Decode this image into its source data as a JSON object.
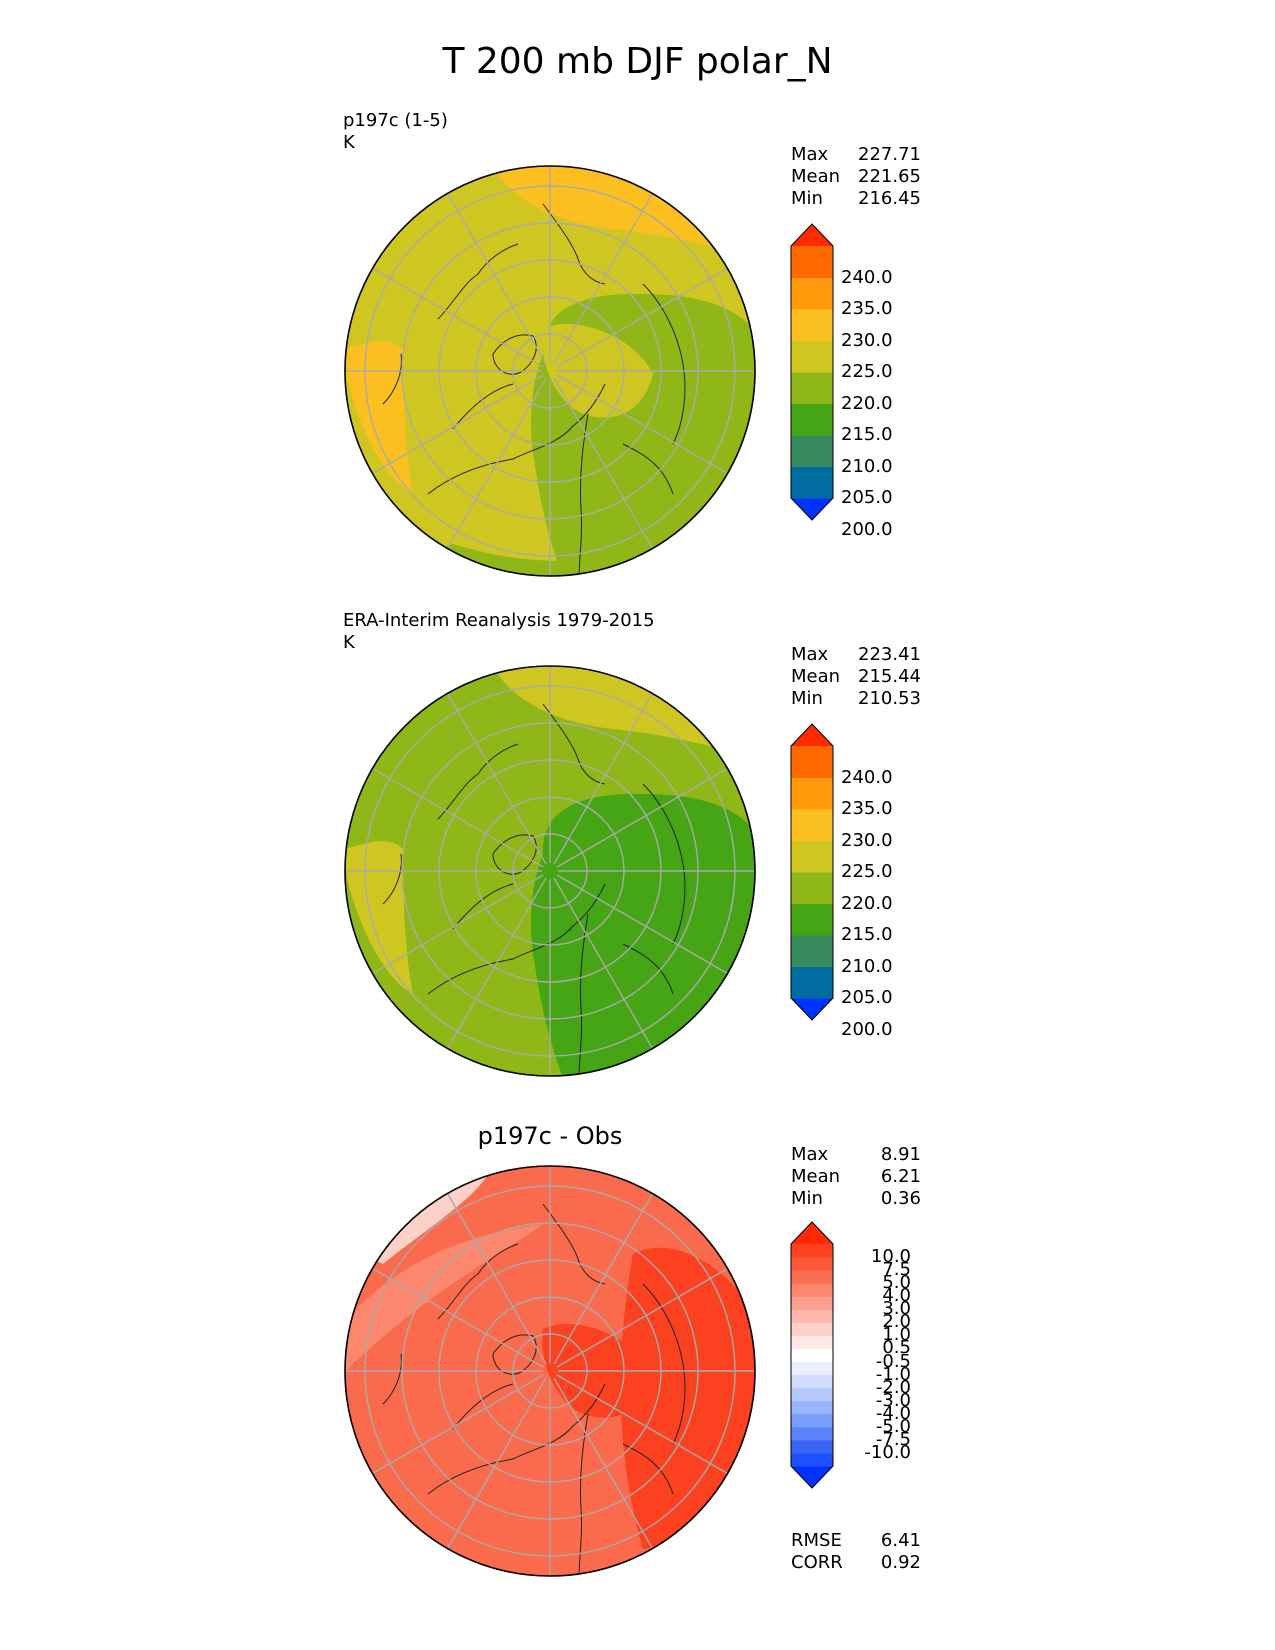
{
  "title": "T 200 mb DJF polar_N",
  "panels": [
    {
      "id": "test",
      "label": "p197c (1-5)",
      "units": "K",
      "stats": [
        {
          "label": "Max",
          "value": "227.71"
        },
        {
          "label": "Mean",
          "value": "221.65"
        },
        {
          "label": "Min",
          "value": "216.45"
        }
      ],
      "colorbar": {
        "colors": [
          "#0033ff",
          "#006ca0",
          "#368a5e",
          "#45a514",
          "#8fb718",
          "#d0c621",
          "#fbc01f",
          "#ff9a0d",
          "#ff6a00",
          "#ff2a00"
        ],
        "ticks": [
          "240.0",
          "235.0",
          "230.0",
          "225.0",
          "220.0",
          "215.0",
          "210.0",
          "205.0",
          "200.0"
        ]
      },
      "field": {
        "background": "#d0c621",
        "zones": [
          {
            "color": "#8fb718",
            "kind": "blob",
            "region": "central-asia-pole"
          },
          {
            "color": "#fbc01f",
            "kind": "blob",
            "region": "pacific-upper"
          },
          {
            "color": "#fbc01f",
            "kind": "blob",
            "region": "atlantic-left"
          },
          {
            "color": "#d0c621",
            "kind": "blob",
            "region": "south-asia"
          },
          {
            "color": "#8fb718",
            "kind": "blob",
            "region": "bottom-edge"
          }
        ]
      }
    },
    {
      "id": "reference",
      "label": "ERA-Interim Reanalysis 1979-2015",
      "units": "K",
      "stats": [
        {
          "label": "Max",
          "value": "223.41"
        },
        {
          "label": "Mean",
          "value": "215.44"
        },
        {
          "label": "Min",
          "value": "210.53"
        }
      ],
      "colorbar": {
        "colors": [
          "#0033ff",
          "#006ca0",
          "#368a5e",
          "#45a514",
          "#8fb718",
          "#d0c621",
          "#fbc01f",
          "#ff9a0d",
          "#ff6a00",
          "#ff2a00"
        ],
        "ticks": [
          "240.0",
          "235.0",
          "230.0",
          "225.0",
          "220.0",
          "215.0",
          "210.0",
          "205.0",
          "200.0"
        ]
      },
      "field": {
        "background": "#8fb718",
        "zones": [
          {
            "color": "#d0c621",
            "kind": "blob",
            "region": "pacific-upper"
          },
          {
            "color": "#d0c621",
            "kind": "blob",
            "region": "atlantic-left"
          },
          {
            "color": "#45a514",
            "kind": "blob",
            "region": "central-asia-pole"
          }
        ]
      }
    },
    {
      "id": "diff",
      "title": "p197c - Obs",
      "stats": [
        {
          "label": "Max",
          "value": "8.91"
        },
        {
          "label": "Mean",
          "value": "6.21"
        },
        {
          "label": "Min",
          "value": "0.36"
        }
      ],
      "colorbar": {
        "colors": [
          "#0033ff",
          "#1f50ff",
          "#3c65f5",
          "#5b82f8",
          "#7a9cfa",
          "#99b4fb",
          "#b5c8fc",
          "#d2dcfd",
          "#ecf0fe",
          "#ffffff",
          "#fee9e6",
          "#fdd0c8",
          "#fcb8aa",
          "#fb9f8c",
          "#fa876e",
          "#f96e51",
          "#fa5838",
          "#fb4120",
          "#ff2a00"
        ],
        "ticks": [
          "10.0",
          "7.5",
          "5.0",
          "4.0",
          "3.0",
          "2.0",
          "1.0",
          "0.5",
          "-0.5",
          "-1.0",
          "-2.0",
          "-3.0",
          "-4.0",
          "-5.0",
          "-7.5",
          "-10.0"
        ]
      },
      "field": {
        "background": "#fa6a4c",
        "zones": [
          {
            "color": "#fb4120",
            "kind": "blob",
            "region": "right-sector"
          },
          {
            "color": "#fb4120",
            "kind": "blob",
            "region": "south-asia"
          },
          {
            "color": "#fa876e",
            "kind": "blob",
            "region": "upper-left-rim"
          },
          {
            "color": "#fdd0c8",
            "kind": "blob",
            "region": "top-left-edge"
          }
        ]
      },
      "error_stats": [
        {
          "label": "RMSE",
          "value": "6.41"
        },
        {
          "label": "CORR",
          "value": "0.92"
        }
      ]
    }
  ]
}
